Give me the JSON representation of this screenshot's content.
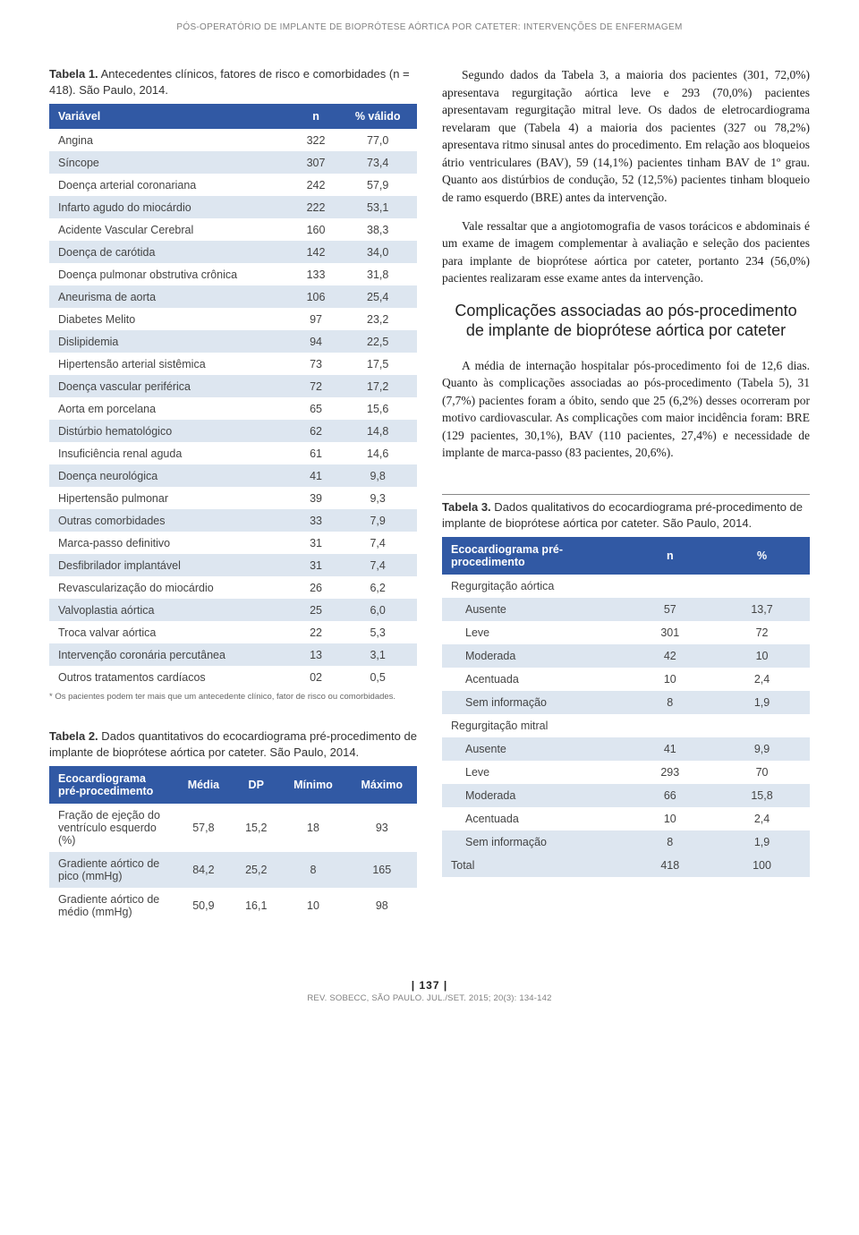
{
  "header_title": "PÓS-OPERATÓRIO DE IMPLANTE DE BIOPRÓTESE AÓRTICA POR CATETER: INTERVENÇÕES DE ENFERMAGEM",
  "table1": {
    "title_bold": "Tabela 1.",
    "title_rest": " Antecedentes clínicos, fatores de risco e comorbidades (n = 418). São Paulo, 2014.",
    "headers": [
      "Variável",
      "n",
      "% válido"
    ],
    "rows": [
      [
        "Angina",
        "322",
        "77,0"
      ],
      [
        "Síncope",
        "307",
        "73,4"
      ],
      [
        "Doença arterial coronariana",
        "242",
        "57,9"
      ],
      [
        "Infarto agudo do miocárdio",
        "222",
        "53,1"
      ],
      [
        "Acidente Vascular Cerebral",
        "160",
        "38,3"
      ],
      [
        "Doença de carótida",
        "142",
        "34,0"
      ],
      [
        "Doença pulmonar obstrutiva crônica",
        "133",
        "31,8"
      ],
      [
        "Aneurisma de aorta",
        "106",
        "25,4"
      ],
      [
        "Diabetes Melito",
        "97",
        "23,2"
      ],
      [
        "Dislipidemia",
        "94",
        "22,5"
      ],
      [
        "Hipertensão arterial sistêmica",
        "73",
        "17,5"
      ],
      [
        "Doença vascular periférica",
        "72",
        "17,2"
      ],
      [
        "Aorta em porcelana",
        "65",
        "15,6"
      ],
      [
        "Distúrbio hematológico",
        "62",
        "14,8"
      ],
      [
        "Insuficiência renal aguda",
        "61",
        "14,6"
      ],
      [
        "Doença neurológica",
        "41",
        "9,8"
      ],
      [
        "Hipertensão pulmonar",
        "39",
        "9,3"
      ],
      [
        "Outras comorbidades",
        "33",
        "7,9"
      ],
      [
        "Marca-passo definitivo",
        "31",
        "7,4"
      ],
      [
        "Desfibrilador implantável",
        "31",
        "7,4"
      ],
      [
        "Revascularização do miocárdio",
        "26",
        "6,2"
      ],
      [
        "Valvoplastia aórtica",
        "25",
        "6,0"
      ],
      [
        "Troca valvar aórtica",
        "22",
        "5,3"
      ],
      [
        "Intervenção coronária percutânea",
        "13",
        "3,1"
      ],
      [
        "Outros tratamentos cardíacos",
        "02",
        "0,5"
      ]
    ],
    "footnote": "* Os pacientes podem ter mais que um antecedente clínico, fator de risco ou comorbidades."
  },
  "table2": {
    "title_bold": "Tabela 2.",
    "title_rest": " Dados quantitativos do ecocardiograma pré-procedimento de implante de bioprótese aórtica por cateter. São Paulo, 2014.",
    "headers": [
      "Ecocardiograma pré-procedimento",
      "Média",
      "DP",
      "Mínimo",
      "Máximo"
    ],
    "rows": [
      [
        "Fração de ejeção do ventrículo esquerdo (%)",
        "57,8",
        "15,2",
        "18",
        "93"
      ],
      [
        "Gradiente aórtico de pico (mmHg)",
        "84,2",
        "25,2",
        "8",
        "165"
      ],
      [
        "Gradiente aórtico de médio (mmHg)",
        "50,9",
        "16,1",
        "10",
        "98"
      ]
    ]
  },
  "right_paragraphs": [
    "Segundo dados da Tabela 3, a maioria dos pacientes (301, 72,0%) apresentava regurgitação aórtica leve e 293 (70,0%) pacientes apresentavam regurgitação mitral leve. Os dados de eletrocardiograma revelaram que (Tabela 4) a maioria dos pacientes (327 ou 78,2%) apresentava ritmo sinusal antes do procedimento. Em relação aos bloqueios átrio ventriculares (BAV), 59 (14,1%) pacientes tinham BAV de 1º grau. Quanto aos distúrbios de condução, 52 (12,5%) pacientes tinham bloqueio de ramo esquerdo (BRE) antes da intervenção.",
    "Vale ressaltar que a angiotomografia de vasos torácicos e abdominais é um exame de imagem complementar à avaliação e seleção dos pacientes para implante de bioprótese aórtica por cateter, portanto 234 (56,0%) pacientes realizaram esse exame antes da intervenção."
  ],
  "section_heading": "Complicações associadas ao pós-procedimento de implante de bioprótese aórtica por cateter",
  "right_paragraphs_2": [
    "A média de internação hospitalar pós-procedimento foi de 12,6 dias. Quanto às complicações associadas ao pós-procedimento (Tabela 5), 31 (7,7%) pacientes foram a óbito, sendo que 25 (6,2%) desses ocorreram por motivo cardiovascular. As complicações com maior incidência foram: BRE (129 pacientes, 30,1%), BAV (110 pacientes, 27,4%) e necessidade de implante de marca-passo (83 pacientes, 20,6%)."
  ],
  "table3": {
    "title_bold": "Tabela 3.",
    "title_rest": " Dados qualitativos do ecocardiograma pré-procedimento de implante de bioprótese aórtica por cateter. São Paulo, 2014.",
    "headers": [
      "Ecocardiograma pré-procedimento",
      "n",
      "%"
    ],
    "groups": [
      {
        "label": "Regurgitação aórtica",
        "rows": [
          [
            "Ausente",
            "57",
            "13,7"
          ],
          [
            "Leve",
            "301",
            "72"
          ],
          [
            "Moderada",
            "42",
            "10"
          ],
          [
            "Acentuada",
            "10",
            "2,4"
          ],
          [
            "Sem informação",
            "8",
            "1,9"
          ]
        ]
      },
      {
        "label": "Regurgitação mitral",
        "rows": [
          [
            "Ausente",
            "41",
            "9,9"
          ],
          [
            "Leve",
            "293",
            "70"
          ],
          [
            "Moderada",
            "66",
            "15,8"
          ],
          [
            "Acentuada",
            "10",
            "2,4"
          ],
          [
            "Sem informação",
            "8",
            "1,9"
          ]
        ]
      }
    ],
    "total": [
      "Total",
      "418",
      "100"
    ]
  },
  "page_number": "| 137 |",
  "citation": "REV. SOBECC, SÃO PAULO. JUL./SET. 2015; 20(3): 134-142"
}
